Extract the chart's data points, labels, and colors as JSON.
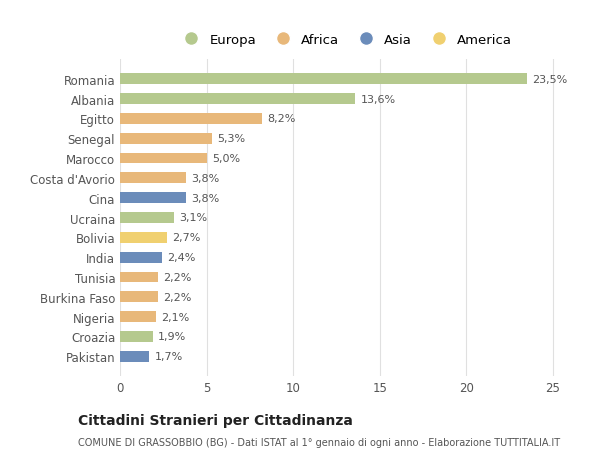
{
  "countries": [
    "Romania",
    "Albania",
    "Egitto",
    "Senegal",
    "Marocco",
    "Costa d'Avorio",
    "Cina",
    "Ucraina",
    "Bolivia",
    "India",
    "Tunisia",
    "Burkina Faso",
    "Nigeria",
    "Croazia",
    "Pakistan"
  ],
  "values": [
    23.5,
    13.6,
    8.2,
    5.3,
    5.0,
    3.8,
    3.8,
    3.1,
    2.7,
    2.4,
    2.2,
    2.2,
    2.1,
    1.9,
    1.7
  ],
  "labels": [
    "23,5%",
    "13,6%",
    "8,2%",
    "5,3%",
    "5,0%",
    "3,8%",
    "3,8%",
    "3,1%",
    "2,7%",
    "2,4%",
    "2,2%",
    "2,2%",
    "2,1%",
    "1,9%",
    "1,7%"
  ],
  "regions": [
    "Europa",
    "Europa",
    "Africa",
    "Africa",
    "Africa",
    "Africa",
    "Asia",
    "Europa",
    "America",
    "Asia",
    "Africa",
    "Africa",
    "Africa",
    "Europa",
    "Asia"
  ],
  "region_colors": {
    "Europa": "#b5c98e",
    "Africa": "#e8b87a",
    "Asia": "#6b8cba",
    "America": "#f0d070"
  },
  "legend_order": [
    "Europa",
    "Africa",
    "Asia",
    "America"
  ],
  "title": "Cittadini Stranieri per Cittadinanza",
  "subtitle": "COMUNE DI GRASSOBBIO (BG) - Dati ISTAT al 1° gennaio di ogni anno - Elaborazione TUTTITALIA.IT",
  "xlim": [
    0,
    26
  ],
  "xticks": [
    0,
    5,
    10,
    15,
    20,
    25
  ],
  "bg_color": "#ffffff",
  "grid_color": "#e0e0e0"
}
